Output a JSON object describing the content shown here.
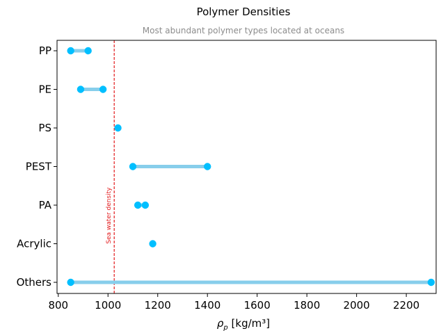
{
  "colors": {
    "range_line": "#87ceeb",
    "point": "#00bfff",
    "reference_line": "#e31a1c",
    "axis": "#000000"
  },
  "chart_data": {
    "type": "dumbbell",
    "title": "Polymer Densities",
    "subtitle": "Most abundant polymer types located at oceans",
    "xlabel_symbol": "ρ",
    "xlabel_subscript": "p",
    "xlabel_units": " [kg/m³]",
    "ylabel": "",
    "xlim": [
      795,
      2320
    ],
    "xticks": [
      800,
      1000,
      1200,
      1400,
      1600,
      1800,
      2000,
      2200
    ],
    "categories": [
      "PP",
      "PE",
      "PS",
      "PEST",
      "PA",
      "Acrylic",
      "Others"
    ],
    "ranges": [
      {
        "category": "PP",
        "min": 850,
        "max": 920
      },
      {
        "category": "PE",
        "min": 890,
        "max": 980
      },
      {
        "category": "PS",
        "min": 1040,
        "max": 1040
      },
      {
        "category": "PEST",
        "min": 1100,
        "max": 1400
      },
      {
        "category": "PA",
        "min": 1120,
        "max": 1150
      },
      {
        "category": "Acrylic",
        "min": 1180,
        "max": 1180
      },
      {
        "category": "Others",
        "min": 850,
        "max": 2300
      }
    ],
    "reference_line": {
      "value": 1025,
      "label": "Sea water density"
    },
    "grid": false,
    "legend": "none"
  }
}
